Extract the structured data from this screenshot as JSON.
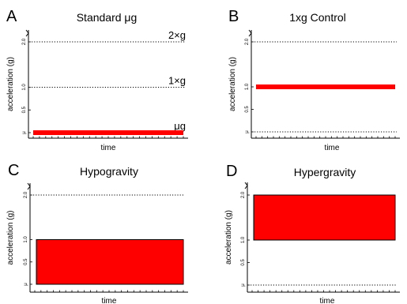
{
  "chart_data": [
    {
      "type": "area",
      "letter": "A",
      "title": "Standard μg",
      "ylabel": "acceleration (g)",
      "xlabel": "time",
      "ylim": [
        0,
        2
      ],
      "yticks": [
        {
          "value": 2.0,
          "label": "2.0"
        },
        {
          "value": 1.0,
          "label": "1.0"
        },
        {
          "value": 0.5,
          "label": "0.5"
        },
        {
          "value": 0,
          "label": "μ"
        }
      ],
      "reference_lines": [
        {
          "value": 2.0,
          "label": "2×g"
        },
        {
          "value": 1.0,
          "label": "1×g"
        },
        {
          "value": 0,
          "label": "μg"
        }
      ],
      "series": [
        {
          "kind": "level",
          "value": 0,
          "color": "#ff0000"
        }
      ]
    },
    {
      "type": "area",
      "letter": "B",
      "title": "1xg Control",
      "ylabel": "acceleration (g)",
      "xlabel": "time",
      "ylim": [
        0,
        2
      ],
      "yticks": [
        {
          "value": 2.0,
          "label": "2.0"
        },
        {
          "value": 1.0,
          "label": "1.0"
        },
        {
          "value": 0.5,
          "label": "0.5"
        },
        {
          "value": 0,
          "label": "μ"
        }
      ],
      "reference_lines": [
        {
          "value": 2.0,
          "label": ""
        },
        {
          "value": 0,
          "label": ""
        }
      ],
      "series": [
        {
          "kind": "level",
          "value": 1.0,
          "color": "#ff0000"
        }
      ]
    },
    {
      "type": "area",
      "letter": "C",
      "title": "Hypogravity",
      "ylabel": "acceleration (g)",
      "xlabel": "time",
      "ylim": [
        0,
        2
      ],
      "yticks": [
        {
          "value": 2.0,
          "label": "2.0"
        },
        {
          "value": 1.0,
          "label": "1.0"
        },
        {
          "value": 0.5,
          "label": "0.5"
        },
        {
          "value": 0,
          "label": "μ"
        }
      ],
      "reference_lines": [
        {
          "value": 2.0,
          "label": ""
        }
      ],
      "series": [
        {
          "kind": "band",
          "low": 0,
          "high": 1.0,
          "color": "#ff0000"
        }
      ]
    },
    {
      "type": "area",
      "letter": "D",
      "title": "Hypergravity",
      "ylabel": "acceleration (g)",
      "xlabel": "time",
      "ylim": [
        0,
        2
      ],
      "yticks": [
        {
          "value": 2.0,
          "label": "2.0"
        },
        {
          "value": 1.0,
          "label": "1.0"
        },
        {
          "value": 0.5,
          "label": "0.5"
        },
        {
          "value": 0,
          "label": "μ"
        }
      ],
      "reference_lines": [
        {
          "value": 0,
          "label": ""
        }
      ],
      "series": [
        {
          "kind": "band",
          "low": 1.0,
          "high": 2.0,
          "color": "#ff0000"
        }
      ]
    }
  ]
}
